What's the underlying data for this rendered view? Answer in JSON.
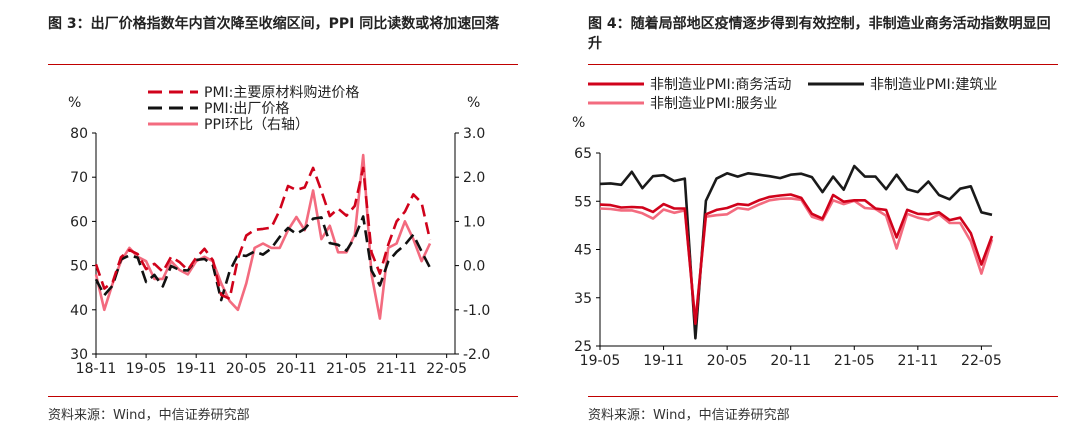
{
  "charts": [
    {
      "title": "图 3：出厂价格指数年内首次降至收缩区间，PPI 同比读数或将加速回落",
      "source": "资料来源：Wind，中信证券研究部",
      "chart_data": {
        "type": "line",
        "left_unit": "%",
        "right_unit": "%",
        "ylim_left": [
          30,
          80
        ],
        "ylim_right": [
          -2.0,
          3.0
        ],
        "yticks_left": [
          "30",
          "40",
          "50",
          "60",
          "70",
          "80"
        ],
        "yticks_right": [
          "-2.0",
          "-1.0",
          "0.0",
          "1.0",
          "2.0",
          "3.0"
        ],
        "x_range": [
          0,
          43
        ],
        "xtick_positions": [
          0,
          6,
          12,
          18,
          24,
          30,
          36,
          42
        ],
        "xticks": [
          "18-11",
          "19-05",
          "19-11",
          "20-05",
          "20-11",
          "21-05",
          "21-11",
          "22-05"
        ],
        "series": [
          {
            "name": "PMI:主要原材料购进价格",
            "axis": "left",
            "color": "#d0021b",
            "dash": "12,6",
            "values": [
              50.3,
              44.8,
              46.3,
              51.9,
              53.5,
              52.6,
              49.2,
              50.4,
              48.6,
              52.0,
              50.8,
              49.0,
              51.8,
              53.8,
              51.2,
              43.4,
              42.5,
              51.6,
              56.8,
              58.1,
              58.3,
              58.6,
              62.5,
              68.0,
              67.1,
              67.7,
              72.1,
              66.9,
              61.2,
              62.9,
              61.3,
              63.5,
              72.1,
              53.0,
              48.2,
              54.7,
              60.0,
              62.2,
              66.1,
              64.2,
              55.8,
              null,
              null,
              null
            ]
          },
          {
            "name": "PMI:出厂价格",
            "axis": "left",
            "color": "#111111",
            "dash": "12,6",
            "values": [
              46.9,
              43.3,
              45.5,
              51.4,
              52.3,
              51.8,
              46.3,
              47.9,
              45.3,
              49.9,
              49.0,
              48.9,
              51.3,
              51.5,
              50.1,
              42.2,
              48.7,
              52.4,
              52.2,
              53.2,
              52.5,
              53.9,
              56.5,
              58.5,
              57.2,
              58.3,
              60.6,
              60.9,
              55.1,
              54.7,
              53.4,
              56.4,
              61.1,
              48.9,
              45.5,
              50.9,
              53.1,
              54.7,
              57.0,
              53.2,
              49.5,
              null,
              null,
              null
            ]
          },
          {
            "name": "PPI环比（右轴）",
            "axis": "right",
            "color": "#f36b7f",
            "dash": "",
            "values": [
              -0.2,
              -1.0,
              -0.4,
              0.1,
              0.4,
              0.2,
              0.1,
              -0.3,
              -0.3,
              0.1,
              -0.1,
              -0.2,
              0.1,
              0.2,
              0.1,
              -0.4,
              -0.8,
              -1.0,
              -0.4,
              0.4,
              0.5,
              0.4,
              0.4,
              0.8,
              1.1,
              0.8,
              1.7,
              0.6,
              0.9,
              0.3,
              0.3,
              0.7,
              2.5,
              -0.2,
              -1.2,
              0.4,
              0.5,
              1.0,
              0.6,
              0.1,
              0.5,
              null,
              null,
              null
            ]
          }
        ]
      }
    },
    {
      "title": "图 4：随着局部地区疫情逐步得到有效控制，非制造业商务活动指数明显回升",
      "source": "资料来源：Wind，中信证券研究部",
      "chart_data": {
        "type": "line",
        "left_unit": "%",
        "ylim_left": [
          25,
          65
        ],
        "yticks_left": [
          "25",
          "35",
          "45",
          "55",
          "65"
        ],
        "x_range": [
          0,
          37
        ],
        "xtick_positions": [
          0,
          6,
          12,
          18,
          24,
          30,
          36
        ],
        "xticks": [
          "19-05",
          "19-11",
          "20-05",
          "20-11",
          "21-05",
          "21-11",
          "22-05"
        ],
        "series": [
          {
            "name": "非制造业PMI:商务活动",
            "axis": "left",
            "color": "#d0021b",
            "dash": "",
            "values": [
              54.3,
              54.2,
              53.7,
              53.8,
              53.7,
              52.8,
              54.4,
              53.5,
              53.5,
              29.6,
              52.3,
              53.2,
              53.6,
              54.4,
              54.2,
              55.2,
              55.9,
              56.2,
              56.4,
              55.7,
              52.4,
              51.4,
              56.3,
              54.9,
              55.2,
              55.2,
              53.5,
              53.2,
              47.5,
              53.2,
              52.4,
              52.3,
              52.7,
              51.1,
              51.6,
              48.4,
              41.9,
              47.8
            ]
          },
          {
            "name": "非制造业PMI:建筑业",
            "axis": "left",
            "color": "#1a1a1a",
            "dash": "",
            "values": [
              58.6,
              58.7,
              58.4,
              61.1,
              57.7,
              60.2,
              60.4,
              59.2,
              59.7,
              26.6,
              55.1,
              59.7,
              60.8,
              60.1,
              60.8,
              60.5,
              60.2,
              59.8,
              60.5,
              60.7,
              60.0,
              56.9,
              60.1,
              57.4,
              62.3,
              60.1,
              60.1,
              57.5,
              60.5,
              57.5,
              56.9,
              59.1,
              56.3,
              55.4,
              57.6,
              58.1,
              52.7,
              52.2
            ]
          },
          {
            "name": "非制造业PMI:服务业",
            "axis": "left",
            "color": "#f36b7f",
            "dash": "",
            "values": [
              53.5,
              53.4,
              53.1,
              53.1,
              52.5,
              51.4,
              53.3,
              52.6,
              53.1,
              30.1,
              51.8,
              52.1,
              52.3,
              53.6,
              53.3,
              54.3,
              55.2,
              55.5,
              55.6,
              55.3,
              51.8,
              51.1,
              55.2,
              54.4,
              55.1,
              53.6,
              53.4,
              52.0,
              45.2,
              52.4,
              51.6,
              51.1,
              52.3,
              50.5,
              50.5,
              46.7,
              40.0,
              47.1
            ]
          }
        ]
      }
    }
  ]
}
